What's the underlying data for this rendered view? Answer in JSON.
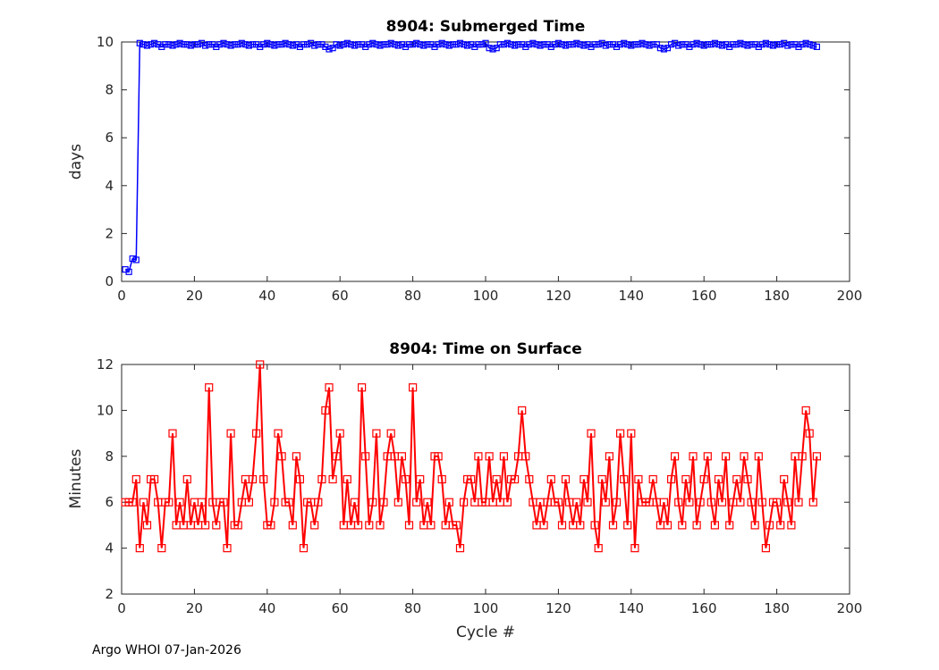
{
  "figure": {
    "footer": "Argo WHOI 07-Jan-2026",
    "background": "#ffffff",
    "axis_color": "#262626"
  },
  "chart_data": [
    {
      "type": "line",
      "title": "8904: Submerged Time",
      "xlabel": "",
      "ylabel": "days",
      "xlim": [
        0,
        200
      ],
      "ylim": [
        0,
        10
      ],
      "xticks": [
        0,
        20,
        40,
        60,
        80,
        100,
        120,
        140,
        160,
        180,
        200
      ],
      "yticks": [
        0,
        2,
        4,
        6,
        8,
        10
      ],
      "grid": false,
      "color": "#0000ff",
      "marker": "open-square",
      "marker_size": 6,
      "line_width": 1.5,
      "x": [
        1,
        2,
        3,
        4,
        5,
        6,
        7,
        8,
        9,
        10,
        11,
        12,
        13,
        14,
        15,
        16,
        17,
        18,
        19,
        20,
        21,
        22,
        23,
        24,
        25,
        26,
        27,
        28,
        29,
        30,
        31,
        32,
        33,
        34,
        35,
        36,
        37,
        38,
        39,
        40,
        41,
        42,
        43,
        44,
        45,
        46,
        47,
        48,
        49,
        50,
        51,
        52,
        53,
        54,
        55,
        56,
        57,
        58,
        59,
        60,
        61,
        62,
        63,
        64,
        65,
        66,
        67,
        68,
        69,
        70,
        71,
        72,
        73,
        74,
        75,
        76,
        77,
        78,
        79,
        80,
        81,
        82,
        83,
        84,
        85,
        86,
        87,
        88,
        89,
        90,
        91,
        92,
        93,
        94,
        95,
        96,
        97,
        98,
        99,
        100,
        101,
        102,
        103,
        104,
        105,
        106,
        107,
        108,
        109,
        110,
        111,
        112,
        113,
        114,
        115,
        116,
        117,
        118,
        119,
        120,
        121,
        122,
        123,
        124,
        125,
        126,
        127,
        128,
        129,
        130,
        131,
        132,
        133,
        134,
        135,
        136,
        137,
        138,
        139,
        140,
        141,
        142,
        143,
        144,
        145,
        146,
        147,
        148,
        149,
        150,
        151,
        152,
        153,
        154,
        155,
        156,
        157,
        158,
        159,
        160,
        161,
        162,
        163,
        164,
        165,
        166,
        167,
        168,
        169,
        170,
        171,
        172,
        173,
        174,
        175,
        176,
        177,
        178,
        179,
        180,
        181,
        182,
        183,
        184,
        185,
        186,
        187,
        188,
        189,
        190,
        191
      ],
      "y": [
        0.5,
        0.4,
        0.95,
        0.9,
        9.95,
        9.9,
        9.85,
        9.9,
        9.95,
        9.9,
        9.8,
        9.9,
        9.9,
        9.85,
        9.9,
        9.95,
        9.9,
        9.9,
        9.85,
        9.9,
        9.9,
        9.95,
        9.85,
        9.9,
        9.9,
        9.8,
        9.9,
        9.95,
        9.9,
        9.85,
        9.9,
        9.9,
        9.95,
        9.9,
        9.85,
        9.9,
        9.9,
        9.8,
        9.9,
        9.95,
        9.9,
        9.85,
        9.9,
        9.9,
        9.95,
        9.9,
        9.85,
        9.9,
        9.8,
        9.9,
        9.9,
        9.95,
        9.85,
        9.9,
        9.9,
        9.8,
        9.7,
        9.75,
        9.9,
        9.85,
        9.9,
        9.95,
        9.9,
        9.85,
        9.9,
        9.9,
        9.8,
        9.9,
        9.95,
        9.9,
        9.85,
        9.9,
        9.9,
        9.95,
        9.9,
        9.85,
        9.9,
        9.8,
        9.9,
        9.9,
        9.95,
        9.9,
        9.85,
        9.9,
        9.9,
        9.8,
        9.9,
        9.95,
        9.9,
        9.85,
        9.9,
        9.9,
        9.95,
        9.9,
        9.85,
        9.9,
        9.8,
        9.9,
        9.9,
        9.95,
        9.75,
        9.7,
        9.75,
        9.9,
        9.9,
        9.95,
        9.9,
        9.85,
        9.9,
        9.9,
        9.8,
        9.9,
        9.95,
        9.9,
        9.85,
        9.9,
        9.9,
        9.8,
        9.9,
        9.95,
        9.9,
        9.85,
        9.9,
        9.9,
        9.95,
        9.9,
        9.85,
        9.9,
        9.8,
        9.9,
        9.9,
        9.95,
        9.85,
        9.9,
        9.9,
        9.8,
        9.9,
        9.95,
        9.9,
        9.85,
        9.9,
        9.9,
        9.95,
        9.9,
        9.85,
        9.9,
        9.9,
        9.75,
        9.7,
        9.75,
        9.9,
        9.95,
        9.85,
        9.9,
        9.9,
        9.8,
        9.9,
        9.95,
        9.9,
        9.85,
        9.9,
        9.9,
        9.95,
        9.9,
        9.85,
        9.9,
        9.8,
        9.9,
        9.9,
        9.95,
        9.9,
        9.85,
        9.9,
        9.9,
        9.8,
        9.9,
        9.95,
        9.9,
        9.85,
        9.9,
        9.9,
        9.95,
        9.85,
        9.9,
        9.9,
        9.8,
        9.9,
        9.95,
        9.9,
        9.85,
        9.8
      ]
    },
    {
      "type": "line",
      "title": "8904: Time on Surface",
      "xlabel": "Cycle #",
      "ylabel": "Minutes",
      "xlim": [
        0,
        200
      ],
      "ylim": [
        2,
        12
      ],
      "xticks": [
        0,
        20,
        40,
        60,
        80,
        100,
        120,
        140,
        160,
        180,
        200
      ],
      "yticks": [
        2,
        4,
        6,
        8,
        10,
        12
      ],
      "grid": false,
      "color": "#ff0000",
      "marker": "open-square",
      "marker_size": 8,
      "line_width": 2,
      "x": [
        1,
        2,
        3,
        4,
        5,
        6,
        7,
        8,
        9,
        10,
        11,
        12,
        13,
        14,
        15,
        16,
        17,
        18,
        19,
        20,
        21,
        22,
        23,
        24,
        25,
        26,
        27,
        28,
        29,
        30,
        31,
        32,
        33,
        34,
        35,
        36,
        37,
        38,
        39,
        40,
        41,
        42,
        43,
        44,
        45,
        46,
        47,
        48,
        49,
        50,
        51,
        52,
        53,
        54,
        55,
        56,
        57,
        58,
        59,
        60,
        61,
        62,
        63,
        64,
        65,
        66,
        67,
        68,
        69,
        70,
        71,
        72,
        73,
        74,
        75,
        76,
        77,
        78,
        79,
        80,
        81,
        82,
        83,
        84,
        85,
        86,
        87,
        88,
        89,
        90,
        91,
        92,
        93,
        94,
        95,
        96,
        97,
        98,
        99,
        100,
        101,
        102,
        103,
        104,
        105,
        106,
        107,
        108,
        109,
        110,
        111,
        112,
        113,
        114,
        115,
        116,
        117,
        118,
        119,
        120,
        121,
        122,
        123,
        124,
        125,
        126,
        127,
        128,
        129,
        130,
        131,
        132,
        133,
        134,
        135,
        136,
        137,
        138,
        139,
        140,
        141,
        142,
        143,
        144,
        145,
        146,
        147,
        148,
        149,
        150,
        151,
        152,
        153,
        154,
        155,
        156,
        157,
        158,
        159,
        160,
        161,
        162,
        163,
        164,
        165,
        166,
        167,
        168,
        169,
        170,
        171,
        172,
        173,
        174,
        175,
        176,
        177,
        178,
        179,
        180,
        181,
        182,
        183,
        184,
        185,
        186,
        187,
        188,
        189,
        190,
        191
      ],
      "y": [
        6,
        6,
        6,
        7,
        4,
        6,
        5,
        7,
        7,
        6,
        4,
        6,
        6,
        9,
        5,
        6,
        5,
        7,
        5,
        6,
        5,
        6,
        5,
        11,
        6,
        5,
        6,
        6,
        4,
        9,
        5,
        5,
        6,
        7,
        6,
        7,
        9,
        12,
        7,
        5,
        5,
        6,
        9,
        8,
        6,
        6,
        5,
        8,
        7,
        4,
        6,
        6,
        5,
        6,
        7,
        10,
        11,
        7,
        8,
        9,
        5,
        7,
        5,
        6,
        5,
        11,
        8,
        5,
        6,
        9,
        5,
        6,
        8,
        9,
        8,
        6,
        8,
        7,
        5,
        11,
        6,
        7,
        5,
        6,
        5,
        8,
        8,
        7,
        5,
        6,
        5,
        5,
        4,
        6,
        7,
        7,
        6,
        8,
        6,
        6,
        8,
        6,
        7,
        6,
        8,
        6,
        7,
        7,
        8,
        10,
        8,
        7,
        6,
        5,
        6,
        5,
        6,
        7,
        6,
        6,
        5,
        7,
        6,
        5,
        6,
        5,
        7,
        6,
        9,
        5,
        4,
        7,
        6,
        8,
        5,
        6,
        9,
        7,
        5,
        9,
        4,
        7,
        6,
        6,
        6,
        7,
        6,
        5,
        6,
        5,
        7,
        8,
        6,
        5,
        7,
        6,
        8,
        5,
        6,
        7,
        8,
        6,
        5,
        7,
        6,
        8,
        5,
        6,
        7,
        6,
        8,
        7,
        6,
        5,
        8,
        6,
        4,
        5,
        6,
        6,
        5,
        7,
        6,
        5,
        8,
        6,
        8,
        10,
        9,
        6,
        8
      ]
    }
  ]
}
